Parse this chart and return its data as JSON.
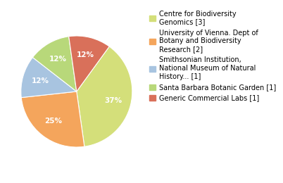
{
  "labels": [
    "Centre for Biodiversity\nGenomics [3]",
    "University of Vienna. Dept of\nBotany and Biodiversity\nResearch [2]",
    "Smithsonian Institution,\nNational Museum of Natural\nHistory... [1]",
    "Santa Barbara Botanic Garden [1]",
    "Generic Commercial Labs [1]"
  ],
  "values": [
    37,
    25,
    12,
    12,
    12
  ],
  "colors": [
    "#d4df7a",
    "#f4a55c",
    "#a8c4e0",
    "#b8d87a",
    "#d9705a"
  ],
  "startangle": 54,
  "pct_fontsize": 7.5,
  "legend_fontsize": 7,
  "pctdistance": 0.68
}
